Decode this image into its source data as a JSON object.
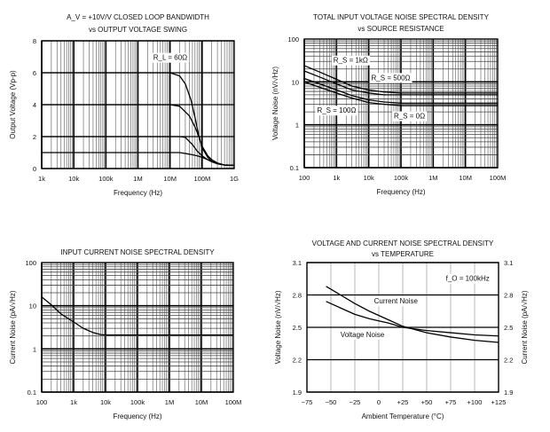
{
  "chart_data": [
    {
      "type": "line",
      "title": "A_V = +10V/V CLOSED LOOP BANDWIDTH",
      "subtitle": "vs OUTPUT VOLTAGE SWING",
      "xlabel": "Frequency (Hz)",
      "ylabel": "Output Voltage (Vp-p)",
      "xscale": "log",
      "xlim": [
        1000,
        1000000000
      ],
      "ylim": [
        0,
        8
      ],
      "xticks": [
        1000,
        10000,
        100000,
        1000000,
        10000000,
        100000000,
        1000000000
      ],
      "xtick_labels": [
        "1k",
        "10k",
        "100k",
        "1M",
        "10M",
        "100M",
        "1G"
      ],
      "yticks": [
        0,
        2,
        4,
        6,
        8
      ],
      "ytick_labels": [
        "0",
        "2",
        "4",
        "6",
        "8"
      ],
      "grid": true,
      "annotations": [
        {
          "text": "R_L = 60Ω",
          "x": 3000000,
          "y": 6.8
        }
      ],
      "series": [
        {
          "x": [
            1000,
            10000000,
            20000000,
            30000000,
            45000000,
            60000000,
            80000000,
            100000000,
            150000000,
            200000000,
            300000000,
            500000000,
            1000000000
          ],
          "y": [
            6,
            6,
            5.8,
            5.3,
            4.3,
            3.2,
            2,
            1.3,
            0.7,
            0.45,
            0.3,
            0.22,
            0.2
          ]
        },
        {
          "x": [
            1000,
            10000000,
            20000000,
            40000000,
            60000000,
            80000000,
            100000000,
            150000000,
            200000000,
            300000000,
            500000000,
            1000000000
          ],
          "y": [
            4,
            4,
            3.9,
            3.3,
            2.6,
            2,
            1.4,
            0.8,
            0.55,
            0.35,
            0.22,
            0.2
          ]
        },
        {
          "x": [
            1000,
            20000000,
            30000000,
            50000000,
            70000000,
            100000000,
            150000000,
            200000000,
            300000000,
            500000000,
            1000000000
          ],
          "y": [
            2,
            2,
            1.95,
            1.5,
            1.1,
            0.8,
            0.55,
            0.42,
            0.3,
            0.22,
            0.2
          ]
        },
        {
          "x": [
            1000,
            20000000,
            40000000,
            70000000,
            100000000,
            200000000,
            300000000,
            500000000,
            1000000000
          ],
          "y": [
            1,
            1,
            0.9,
            0.8,
            0.7,
            0.45,
            0.32,
            0.22,
            0.2
          ]
        }
      ]
    },
    {
      "type": "line",
      "title": "TOTAL INPUT VOLTAGE NOISE SPECTRAL DENSITY",
      "subtitle": "vs SOURCE RESISTANCE",
      "xlabel": "Frequency (Hz)",
      "ylabel": "Voltage Noise (nV/√Hz)",
      "xscale": "log",
      "yscale": "log",
      "xlim": [
        100,
        100000000
      ],
      "ylim": [
        0.1,
        100
      ],
      "xticks": [
        100,
        1000,
        10000,
        100000,
        1000000,
        10000000,
        100000000
      ],
      "xtick_labels": [
        "100",
        "1k",
        "10k",
        "100k",
        "1M",
        "10M",
        "100M"
      ],
      "yticks": [
        0.1,
        1,
        10,
        100
      ],
      "ytick_labels": [
        "0.1",
        "1",
        "10",
        "100"
      ],
      "grid": true,
      "annotations": [
        {
          "text": "R_S = 1kΩ",
          "x": 800,
          "y": 28
        },
        {
          "text": "R_S = 500Ω",
          "x": 12000,
          "y": 11
        },
        {
          "text": "R_S = 100Ω",
          "x": 250,
          "y": 1.9
        },
        {
          "text": "R_S = 0Ω",
          "x": 60000,
          "y": 1.4
        }
      ],
      "series": [
        {
          "name": "R_S = 1kΩ",
          "x": [
            100,
            300,
            1000,
            3000,
            10000,
            30000,
            100000,
            100000000
          ],
          "y": [
            24,
            17,
            11.5,
            8,
            6.5,
            5.8,
            5.5,
            5.5
          ]
        },
        {
          "name": "R_S = 500Ω",
          "x": [
            100,
            300,
            1000,
            3000,
            10000,
            30000,
            100000,
            100000000
          ],
          "y": [
            18,
            13,
            9,
            6.5,
            5.5,
            5,
            5,
            5
          ]
        },
        {
          "name": "R_S = 100Ω",
          "x": [
            100,
            300,
            1000,
            3000,
            10000,
            30000,
            100000,
            100000000
          ],
          "y": [
            12,
            9,
            6.5,
            4.8,
            3.8,
            3.4,
            3.2,
            3.2
          ]
        },
        {
          "name": "R_S = 0Ω",
          "x": [
            100,
            300,
            1000,
            3000,
            10000,
            30000,
            100000,
            100000000
          ],
          "y": [
            10,
            7.5,
            5.5,
            4.2,
            3.3,
            3,
            2.8,
            2.8
          ]
        }
      ]
    },
    {
      "type": "line",
      "title": "INPUT CURRENT NOISE SPECTRAL DENSITY",
      "xlabel": "Frequency (Hz)",
      "ylabel": "Current Noise (pA/√Hz)",
      "xscale": "log",
      "yscale": "log",
      "xlim": [
        100,
        100000000
      ],
      "ylim": [
        0.1,
        100
      ],
      "xticks": [
        100,
        1000,
        10000,
        100000,
        1000000,
        10000000,
        100000000
      ],
      "xtick_labels": [
        "100",
        "1k",
        "10k",
        "100k",
        "1M",
        "10M",
        "100M"
      ],
      "yticks": [
        0.1,
        1,
        10,
        100
      ],
      "ytick_labels": [
        "0.1",
        "1",
        "10",
        "100"
      ],
      "grid": true,
      "annotations": [],
      "series": [
        {
          "x": [
            100,
            200,
            400,
            1000,
            2000,
            4000,
            7000,
            10000,
            100000000
          ],
          "y": [
            16,
            10.5,
            6.5,
            4.2,
            3,
            2.4,
            2.15,
            2.1,
            2.1
          ]
        }
      ]
    },
    {
      "type": "line",
      "title": "VOLTAGE AND CURRENT NOISE SPECTRAL DENSITY",
      "subtitle": "vs TEMPERATURE",
      "xlabel": "Ambient Temperature (°C)",
      "ylabel": "Voltage Noise (nV/√Hz)",
      "ylabel_right": "Current Noise (pA/√Hz)",
      "xlim": [
        -75,
        125
      ],
      "ylim": [
        1.9,
        3.1
      ],
      "xticks": [
        -75,
        -50,
        -25,
        0,
        25,
        50,
        75,
        100,
        125
      ],
      "xtick_labels": [
        "−75",
        "−50",
        "−25",
        "0",
        "+25",
        "+50",
        "+75",
        "+100",
        "+125"
      ],
      "yticks": [
        1.9,
        2.2,
        2.5,
        2.8,
        3.1
      ],
      "ytick_labels": [
        "1.9",
        "2.2",
        "2.5",
        "2.8",
        "3.1"
      ],
      "grid": true,
      "annotations": [
        {
          "text": "f_O = 100kHz",
          "x": 70,
          "y": 2.93
        },
        {
          "text": "Current Noise",
          "x": -5,
          "y": 2.72
        },
        {
          "text": "Voltage Noise",
          "x": -40,
          "y": 2.41
        }
      ],
      "series": [
        {
          "name": "Current Noise",
          "x": [
            -55,
            -40,
            -25,
            -10,
            0,
            10,
            25,
            50,
            75,
            100,
            125
          ],
          "y": [
            2.88,
            2.8,
            2.72,
            2.65,
            2.61,
            2.57,
            2.51,
            2.45,
            2.41,
            2.38,
            2.36
          ]
        },
        {
          "name": "Voltage Noise",
          "x": [
            -55,
            -40,
            -25,
            -10,
            0,
            10,
            25,
            50,
            75,
            100,
            125
          ],
          "y": [
            2.74,
            2.68,
            2.62,
            2.58,
            2.56,
            2.54,
            2.5,
            2.47,
            2.45,
            2.43,
            2.42
          ]
        }
      ]
    }
  ]
}
